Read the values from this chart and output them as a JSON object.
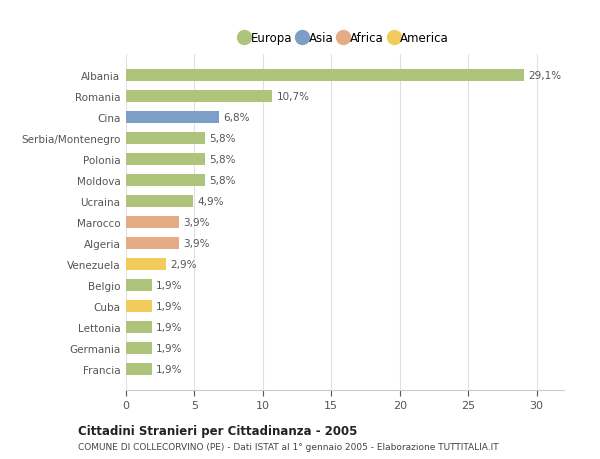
{
  "countries": [
    "Albania",
    "Romania",
    "Cina",
    "Serbia/Montenegro",
    "Polonia",
    "Moldova",
    "Ucraina",
    "Marocco",
    "Algeria",
    "Venezuela",
    "Belgio",
    "Cuba",
    "Lettonia",
    "Germania",
    "Francia"
  ],
  "values": [
    29.1,
    10.7,
    6.8,
    5.8,
    5.8,
    5.8,
    4.9,
    3.9,
    3.9,
    2.9,
    1.9,
    1.9,
    1.9,
    1.9,
    1.9
  ],
  "labels": [
    "29,1%",
    "10,7%",
    "6,8%",
    "5,8%",
    "5,8%",
    "5,8%",
    "4,9%",
    "3,9%",
    "3,9%",
    "2,9%",
    "1,9%",
    "1,9%",
    "1,9%",
    "1,9%",
    "1,9%"
  ],
  "continents": [
    "Europa",
    "Europa",
    "Asia",
    "Europa",
    "Europa",
    "Europa",
    "Europa",
    "Africa",
    "Africa",
    "America",
    "Europa",
    "America",
    "Europa",
    "Europa",
    "Europa"
  ],
  "colors": {
    "Europa": "#adc47a",
    "Asia": "#7b9fc7",
    "Africa": "#e4ab84",
    "America": "#f2cc5a"
  },
  "xlim": [
    0,
    32
  ],
  "xticks": [
    0,
    5,
    10,
    15,
    20,
    25,
    30
  ],
  "title": "Cittadini Stranieri per Cittadinanza - 2005",
  "subtitle": "COMUNE DI COLLECORVINO (PE) - Dati ISTAT al 1° gennaio 2005 - Elaborazione TUTTITALIA.IT",
  "bg_color": "#ffffff",
  "plot_bg_color": "#ffffff",
  "grid_color": "#e0e0e0",
  "bar_height": 0.55,
  "legend_items": [
    "Europa",
    "Asia",
    "Africa",
    "America"
  ]
}
